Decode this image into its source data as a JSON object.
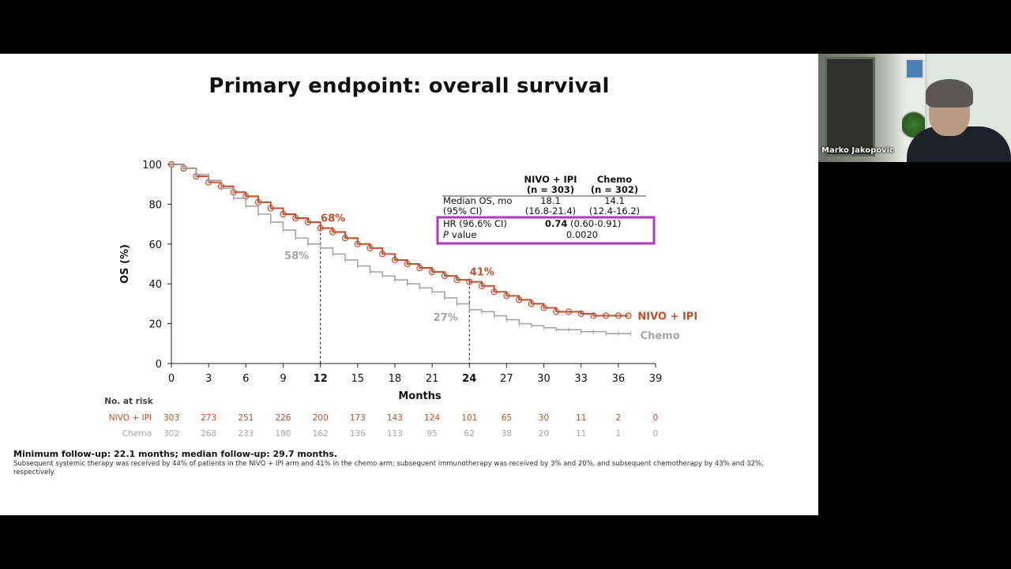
{
  "slide": {
    "title": "Primary endpoint: overall survival",
    "footnote_main": "Minimum follow-up: 22.1 months; median follow-up: 29.7 months.",
    "footnote_detail": "Subsequent systemic therapy was received by 44% of patients in the NIVO + IPI arm and 41% in the chemo arm; subsequent immunotherapy was received by 3% and 20%, and subsequent chemotherapy by 43% and 32%, respectively."
  },
  "participant": {
    "name": "Marko Jakopovic"
  },
  "colors": {
    "nivo": "#c0502e",
    "chemo": "#a6a6a6",
    "highlight": "#b535c4",
    "axis": "#222222"
  },
  "chart_data": {
    "type": "line",
    "title": "",
    "xlabel": "Months",
    "ylabel": "OS (%)",
    "xlim": [
      0,
      39
    ],
    "ylim": [
      0,
      100
    ],
    "x_ticks": [
      0,
      3,
      6,
      9,
      12,
      15,
      18,
      21,
      24,
      27,
      30,
      33,
      36,
      39
    ],
    "y_ticks": [
      0,
      20,
      40,
      60,
      80,
      100
    ],
    "series": [
      {
        "name": "NIVO + IPI",
        "color": "#c0502e",
        "x": [
          0,
          1,
          2,
          3,
          4,
          5,
          6,
          7,
          8,
          9,
          10,
          11,
          12,
          13,
          14,
          15,
          16,
          17,
          18,
          19,
          20,
          21,
          22,
          23,
          24,
          25,
          26,
          27,
          28,
          29,
          30,
          31,
          32,
          33,
          34,
          35,
          36,
          36.8
        ],
        "values": [
          100,
          98,
          94,
          91,
          89,
          86,
          84,
          81,
          78,
          75,
          73,
          71,
          68,
          66,
          63,
          60,
          58,
          55,
          52,
          50,
          48,
          46,
          44,
          42,
          41,
          39,
          36,
          34,
          32,
          30,
          28,
          26,
          26,
          25,
          24,
          24,
          24,
          24
        ]
      },
      {
        "name": "Chemo",
        "color": "#a6a6a6",
        "x": [
          0,
          1,
          2,
          3,
          4,
          5,
          6,
          7,
          8,
          9,
          10,
          11,
          12,
          13,
          14,
          15,
          16,
          17,
          18,
          19,
          20,
          21,
          22,
          23,
          24,
          25,
          26,
          27,
          28,
          29,
          30,
          31,
          32,
          33,
          34,
          35,
          36,
          37
        ],
        "values": [
          100,
          98,
          95,
          92,
          88,
          83,
          79,
          75,
          71,
          67,
          63,
          60,
          58,
          55,
          52,
          49,
          46,
          44,
          42,
          40,
          38,
          36,
          33,
          30,
          27,
          26,
          24,
          22,
          20,
          19,
          18,
          17,
          17,
          16,
          16,
          15,
          15,
          15
        ]
      }
    ],
    "annotations": [
      {
        "text": "68%",
        "x": 12,
        "y": 68,
        "series": "NIVO + IPI"
      },
      {
        "text": "58%",
        "x": 12,
        "y": 58,
        "series": "Chemo"
      },
      {
        "text": "41%",
        "x": 24,
        "y": 41,
        "series": "NIVO + IPI"
      },
      {
        "text": "27%",
        "x": 24,
        "y": 27,
        "series": "Chemo"
      }
    ],
    "reference_lines_x": [
      12,
      24
    ],
    "series_labels": [
      "NIVO + IPI",
      "Chemo"
    ],
    "stats_table": {
      "header": [
        "NIVO + IPI\n(n = 303)",
        "Chemo\n(n = 302)"
      ],
      "col1_line1": "NIVO + IPI",
      "col1_line2": "(n = 303)",
      "col2_line1": "Chemo",
      "col2_line2": "(n = 302)",
      "row1_label_line1": "Median OS, mo",
      "row1_label_line2": "(95% CI)",
      "row1_col1_line1": "18.1",
      "row1_col1_line2": "(16.8-21.4)",
      "row1_col2_line1": "14.1",
      "row1_col2_line2": "(12.4-16.2)",
      "hr_label": "HR (96.6% CI)",
      "hr_value": "0.74",
      "hr_ci": "(0.60-0.91)",
      "p_label": "P",
      "p_label_suffix": "value",
      "p_value": "0.0020"
    },
    "risk_table": {
      "label": "No. at risk",
      "rows": [
        {
          "name": "NIVO + IPI",
          "values": [
            "303",
            "273",
            "251",
            "226",
            "200",
            "173",
            "143",
            "124",
            "101",
            "65",
            "30",
            "11",
            "2",
            "0"
          ]
        },
        {
          "name": "Chemo",
          "values": [
            "302",
            "268",
            "233",
            "190",
            "162",
            "136",
            "113",
            "95",
            "62",
            "38",
            "20",
            "11",
            "1",
            "0"
          ]
        }
      ]
    }
  }
}
